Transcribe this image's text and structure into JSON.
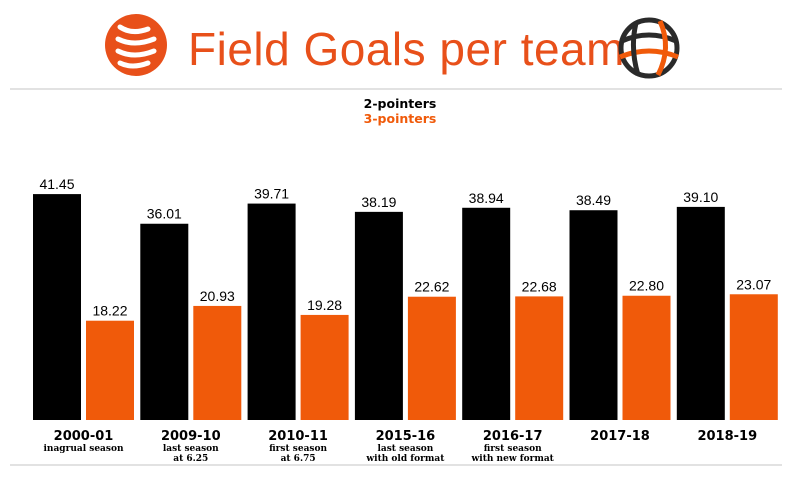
{
  "header": {
    "title": "Field Goals per team",
    "logo_left_icon": "euroleague-logo-icon",
    "logo_right_icon": "basketball-icon"
  },
  "colors": {
    "two_pointers": "#000000",
    "three_pointers": "#f05a0a",
    "title": "#e8501a",
    "divider": "#e2e2e2"
  },
  "chart_data": {
    "type": "bar",
    "title": "Field Goals per team",
    "xlabel": "",
    "ylabel": "",
    "ylim": [
      0,
      45
    ],
    "grid": false,
    "legend": "top-center",
    "categories": [
      {
        "label": "2000-01",
        "sub": [
          "inagrual season"
        ]
      },
      {
        "label": "2009-10",
        "sub": [
          "last season",
          "at 6.25"
        ]
      },
      {
        "label": "2010-11",
        "sub": [
          "first season",
          "at 6.75"
        ]
      },
      {
        "label": "2015-16",
        "sub": [
          "last season",
          "with old format"
        ]
      },
      {
        "label": "2016-17",
        "sub": [
          "first season",
          "with new format"
        ]
      },
      {
        "label": "2017-18",
        "sub": []
      },
      {
        "label": "2018-19",
        "sub": []
      }
    ],
    "series": [
      {
        "name": "2-pointers",
        "values": [
          41.45,
          36.01,
          39.71,
          38.19,
          38.94,
          38.49,
          39.1
        ]
      },
      {
        "name": "3-pointers",
        "values": [
          18.22,
          20.93,
          19.28,
          22.62,
          22.68,
          22.8,
          23.07
        ]
      }
    ]
  }
}
